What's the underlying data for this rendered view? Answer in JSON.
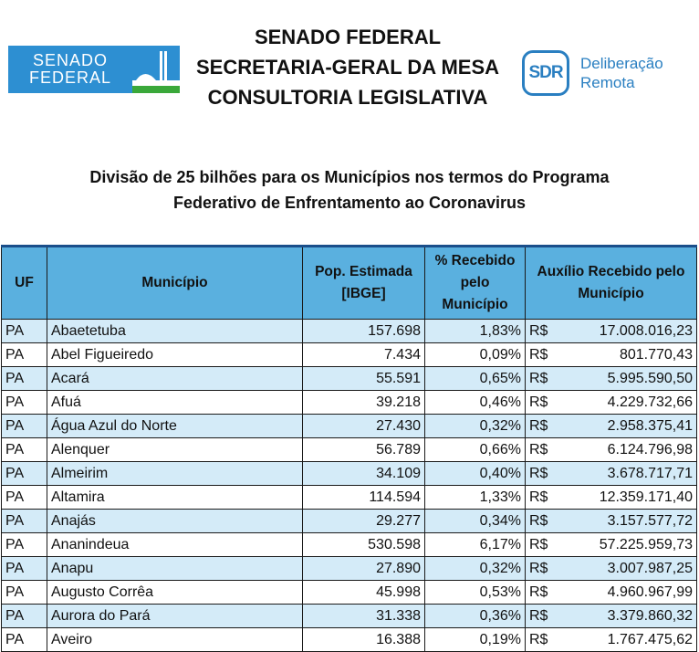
{
  "header": {
    "senado_logo_line1": "SENADO",
    "senado_logo_line2": "FEDERAL",
    "title_line1": "SENADO FEDERAL",
    "title_line2": "SECRETARIA-GERAL DA MESA",
    "title_line3": "CONSULTORIA LEGISLATIVA",
    "sdr_abbr": "SDR",
    "sdr_line1": "Deliberação",
    "sdr_line2": "Remota"
  },
  "doc_title_line1": "Divisão de 25 bilhões para os Municípios nos termos do Programa",
  "doc_title_line2": "Federativo de Enfrentamento ao Coronavirus",
  "table": {
    "columns": {
      "uf": "UF",
      "municipio": "Município",
      "pop": "Pop. Estimada [IBGE]",
      "pct": "% Recebido pelo Município",
      "auxilio": "Auxílio Recebido pelo Município"
    },
    "currency": "R$",
    "rows": [
      {
        "uf": "PA",
        "municipio": "Abaetetuba",
        "pop": "157.698",
        "pct": "1,83%",
        "valor": "17.008.016,23"
      },
      {
        "uf": "PA",
        "municipio": "Abel Figueiredo",
        "pop": "7.434",
        "pct": "0,09%",
        "valor": "801.770,43"
      },
      {
        "uf": "PA",
        "municipio": "Acará",
        "pop": "55.591",
        "pct": "0,65%",
        "valor": "5.995.590,50"
      },
      {
        "uf": "PA",
        "municipio": "Afuá",
        "pop": "39.218",
        "pct": "0,46%",
        "valor": "4.229.732,66"
      },
      {
        "uf": "PA",
        "municipio": "Água Azul do Norte",
        "pop": "27.430",
        "pct": "0,32%",
        "valor": "2.958.375,41"
      },
      {
        "uf": "PA",
        "municipio": "Alenquer",
        "pop": "56.789",
        "pct": "0,66%",
        "valor": "6.124.796,98"
      },
      {
        "uf": "PA",
        "municipio": "Almeirim",
        "pop": "34.109",
        "pct": "0,40%",
        "valor": "3.678.717,71"
      },
      {
        "uf": "PA",
        "municipio": "Altamira",
        "pop": "114.594",
        "pct": "1,33%",
        "valor": "12.359.171,40"
      },
      {
        "uf": "PA",
        "municipio": "Anajás",
        "pop": "29.277",
        "pct": "0,34%",
        "valor": "3.157.577,72"
      },
      {
        "uf": "PA",
        "municipio": "Ananindeua",
        "pop": "530.598",
        "pct": "6,17%",
        "valor": "57.225.959,73"
      },
      {
        "uf": "PA",
        "municipio": "Anapu",
        "pop": "27.890",
        "pct": "0,32%",
        "valor": "3.007.987,25"
      },
      {
        "uf": "PA",
        "municipio": "Augusto Corrêa",
        "pop": "45.998",
        "pct": "0,53%",
        "valor": "4.960.967,99"
      },
      {
        "uf": "PA",
        "municipio": "Aurora do Pará",
        "pop": "31.338",
        "pct": "0,36%",
        "valor": "3.379.860,32"
      },
      {
        "uf": "PA",
        "municipio": "Aveiro",
        "pop": "16.388",
        "pct": "0,19%",
        "valor": "1.767.475,62"
      }
    ]
  }
}
